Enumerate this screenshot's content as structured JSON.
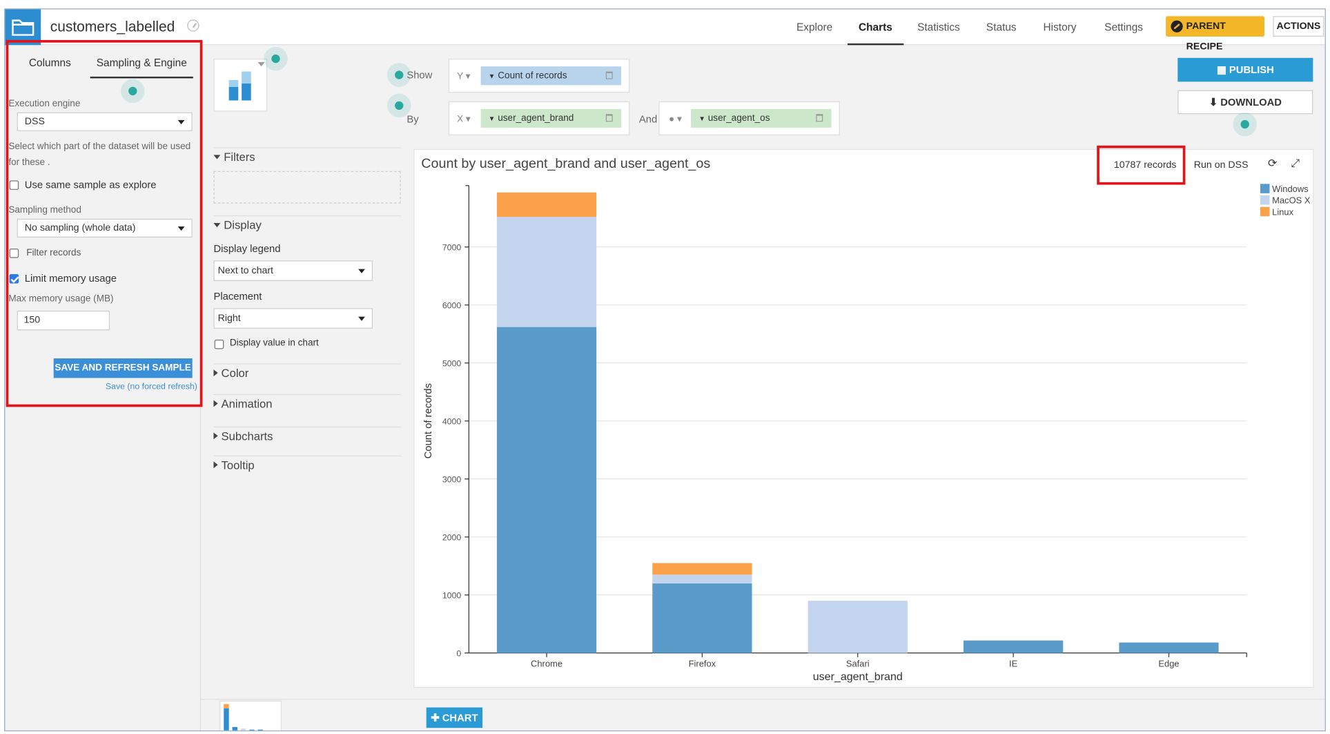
{
  "header": {
    "dataset_name": "customers_labelled",
    "nav": [
      "Explore",
      "Charts",
      "Statistics",
      "Status",
      "History",
      "Settings"
    ],
    "active_nav": "Charts",
    "parent_recipe": "PARENT RECIPE",
    "actions": "ACTIONS"
  },
  "left_panel": {
    "tabs": [
      "Columns",
      "Sampling & Engine"
    ],
    "active_tab": "Sampling & Engine",
    "execution_engine_label": "Execution engine",
    "execution_engine_value": "DSS",
    "help_text_1": "Select which part of the dataset will be used",
    "help_text_2": "for these .",
    "use_same_sample": "Use same sample as explore",
    "sampling_method_label": "Sampling method",
    "sampling_method_value": "No sampling (whole data)",
    "filter_records": "Filter records",
    "limit_memory": "Limit memory usage",
    "max_memory_label": "Max memory usage (MB)",
    "max_memory_value": "150",
    "save_refresh": "SAVE AND REFRESH SAMPLE",
    "save_no_refresh": "Save (no forced refresh)"
  },
  "settings_panel": {
    "filters": "Filters",
    "display": "Display",
    "display_legend_label": "Display legend",
    "display_legend_value": "Next to chart",
    "placement_label": "Placement",
    "placement_value": "Right",
    "display_value_in_chart": "Display value in chart",
    "color": "Color",
    "animation": "Animation",
    "subcharts": "Subcharts",
    "tooltip": "Tooltip"
  },
  "dimensions": {
    "show_label": "Show",
    "by_label": "By",
    "and_label": "And",
    "y_axis": "Y",
    "x_axis": "X",
    "y_measure": "Count of records",
    "x_dimension": "user_agent_brand",
    "color_dimension": "user_agent_os"
  },
  "buttons": {
    "publish": "PUBLISH",
    "download": "DOWNLOAD",
    "add_chart": "CHART"
  },
  "chart_header": {
    "records": "10787 records",
    "run_on": "Run on DSS"
  },
  "colors": {
    "windows": "#5a9bc9",
    "macos": "#c3d5ee",
    "linux": "#fba14a",
    "accent": "#2a9bd4"
  },
  "chart_data": {
    "type": "bar",
    "stacked": true,
    "title": "Count by user_agent_brand and user_agent_os",
    "xlabel": "user_agent_brand",
    "ylabel": "Count of records",
    "categories": [
      "Chrome",
      "Firefox",
      "Safari",
      "IE",
      "Edge"
    ],
    "series": [
      {
        "name": "Windows",
        "values": [
          5620,
          1200,
          0,
          215,
          180
        ]
      },
      {
        "name": "MacOS X",
        "values": [
          1900,
          150,
          900,
          0,
          0
        ]
      },
      {
        "name": "Linux",
        "values": [
          420,
          200,
          0,
          0,
          0
        ]
      }
    ],
    "ylim": [
      0,
      8000
    ],
    "yticks": [
      0,
      1000,
      2000,
      3000,
      4000,
      5000,
      6000,
      7000
    ],
    "grid": true,
    "legend": "top-right"
  }
}
